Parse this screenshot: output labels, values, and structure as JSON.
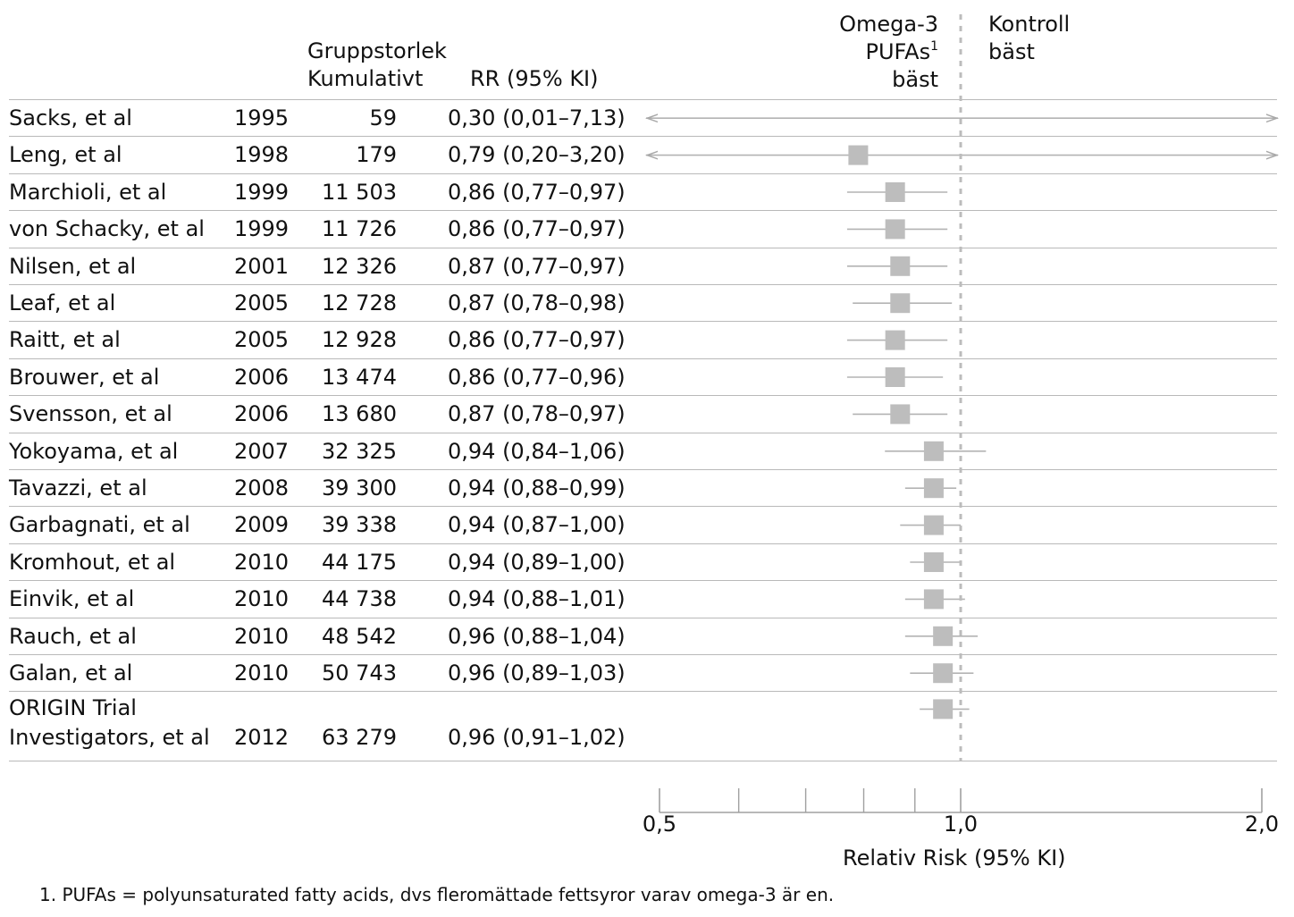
{
  "header": {
    "group_size_line1": "Gruppstorlek",
    "group_size_line2": "Kumulativt",
    "rr_label": "RR (95% KI)",
    "left_side_line1": "Omega-3",
    "left_side_line2": "PUFAs",
    "left_side_sup": "1",
    "left_side_line3": "bäst",
    "right_side_line1": "Kontroll",
    "right_side_line2": "bäst"
  },
  "footnote": "1. PUFAs = polyunsaturated fatty acids, dvs fleromättade fettsyror varav omega-3 är en.",
  "chart_data": {
    "type": "scatter",
    "subtype": "forest-plot",
    "xlabel": "Relativ Risk (95% KI)",
    "x_scale": "log",
    "xlim": [
      0.5,
      2.0
    ],
    "x_ticks": [
      0.5,
      1.0,
      2.0
    ],
    "x_tick_labels": [
      "0,5",
      "1,0",
      "2,0"
    ],
    "minor_ticks": [
      0.6,
      0.7,
      0.8,
      0.9
    ],
    "reference_line": 1.0,
    "colors": {
      "marker": "#bdbdbd",
      "ci": "#b3b3b3",
      "reference": "#bcbcbc"
    },
    "rows": [
      {
        "study": "Sacks, et al",
        "year": "1995",
        "n": "59",
        "rr_text": "0,30 (0,01–7,13)",
        "rr": 0.3,
        "lo": 0.01,
        "hi": 7.13
      },
      {
        "study": "Leng, et al",
        "year": "1998",
        "n": "179",
        "rr_text": "0,79 (0,20–3,20)",
        "rr": 0.79,
        "lo": 0.2,
        "hi": 3.2
      },
      {
        "study": "Marchioli, et al",
        "year": "1999",
        "n": "11 503",
        "rr_text": "0,86 (0,77–0,97)",
        "rr": 0.86,
        "lo": 0.77,
        "hi": 0.97
      },
      {
        "study": "von Schacky, et al",
        "year": "1999",
        "n": "11 726",
        "rr_text": "0,86 (0,77–0,97)",
        "rr": 0.86,
        "lo": 0.77,
        "hi": 0.97
      },
      {
        "study": "Nilsen, et al",
        "year": "2001",
        "n": "12 326",
        "rr_text": "0,87 (0,77–0,97)",
        "rr": 0.87,
        "lo": 0.77,
        "hi": 0.97
      },
      {
        "study": "Leaf, et al",
        "year": "2005",
        "n": "12 728",
        "rr_text": "0,87 (0,78–0,98)",
        "rr": 0.87,
        "lo": 0.78,
        "hi": 0.98
      },
      {
        "study": "Raitt, et al",
        "year": "2005",
        "n": "12 928",
        "rr_text": "0,86 (0,77–0,97)",
        "rr": 0.86,
        "lo": 0.77,
        "hi": 0.97
      },
      {
        "study": "Brouwer, et al",
        "year": "2006",
        "n": "13 474",
        "rr_text": "0,86 (0,77–0,96)",
        "rr": 0.86,
        "lo": 0.77,
        "hi": 0.96
      },
      {
        "study": "Svensson, et al",
        "year": "2006",
        "n": "13 680",
        "rr_text": "0,87 (0,78–0,97)",
        "rr": 0.87,
        "lo": 0.78,
        "hi": 0.97
      },
      {
        "study": "Yokoyama, et al",
        "year": "2007",
        "n": "32 325",
        "rr_text": "0,94 (0,84–1,06)",
        "rr": 0.94,
        "lo": 0.84,
        "hi": 1.06
      },
      {
        "study": "Tavazzi, et al",
        "year": "2008",
        "n": "39 300",
        "rr_text": "0,94 (0,88–0,99)",
        "rr": 0.94,
        "lo": 0.88,
        "hi": 0.99
      },
      {
        "study": "Garbagnati, et al",
        "year": "2009",
        "n": "39 338",
        "rr_text": "0,94 (0,87–1,00)",
        "rr": 0.94,
        "lo": 0.87,
        "hi": 1.0
      },
      {
        "study": "Kromhout, et al",
        "year": "2010",
        "n": "44 175",
        "rr_text": "0,94 (0,89–1,00)",
        "rr": 0.94,
        "lo": 0.89,
        "hi": 1.0
      },
      {
        "study": "Einvik, et al",
        "year": "2010",
        "n": "44 738",
        "rr_text": "0,94 (0,88–1,01)",
        "rr": 0.94,
        "lo": 0.88,
        "hi": 1.01
      },
      {
        "study": "Rauch, et al",
        "year": "2010",
        "n": "48 542",
        "rr_text": "0,96 (0,88–1,04)",
        "rr": 0.96,
        "lo": 0.88,
        "hi": 1.04
      },
      {
        "study": "Galan, et al",
        "year": "2010",
        "n": "50 743",
        "rr_text": "0,96 (0,89–1,03)",
        "rr": 0.96,
        "lo": 0.89,
        "hi": 1.03
      },
      {
        "study": "ORIGIN Trial",
        "study_line2": "Investigators, et al",
        "year": "2012",
        "n": "63 279",
        "rr_text": "0,96 (0,91–1,02)",
        "rr": 0.96,
        "lo": 0.91,
        "hi": 1.02
      }
    ]
  }
}
